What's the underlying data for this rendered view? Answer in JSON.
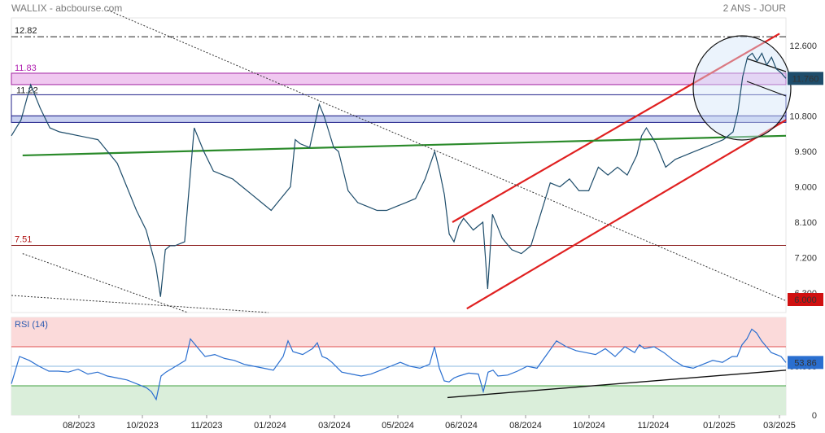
{
  "header": {
    "left": "WALLIX - abcbourse.com",
    "right": "2 ANS - JOUR"
  },
  "colors": {
    "price_line": "#1e4d6b",
    "channel": "#e02020",
    "green_trend": "#2a8a2a",
    "purple_zone": "#f0c8f0",
    "blue_zone": "#c8d0f0",
    "resistance": "#8b1a1a",
    "rsi_line": "#2a6fd0",
    "last_badge": "#1e4d6b",
    "low_badge": "#d01010",
    "rsi_over": "#fbdada",
    "rsi_under": "#daeeda"
  },
  "chart_data": [
    {
      "type": "line",
      "title": "WALLIX",
      "x_labels": [
        "08/2023",
        "10/2023",
        "11/2023",
        "01/2024",
        "03/2024",
        "05/2024",
        "06/2024",
        "08/2024",
        "10/2024",
        "11/2024",
        "01/2025",
        "03/2025"
      ],
      "y_ticks": [
        12.6,
        10.8,
        9.9,
        9.0,
        8.1,
        7.2,
        6.3
      ],
      "y_tick_labels": [
        "12.600",
        "10.800",
        "9.900",
        "9.000",
        "8.100",
        "7.200",
        "6.300"
      ],
      "ylim": [
        5.8,
        13.3
      ],
      "levels": [
        {
          "label": "12.82",
          "value": 12.82,
          "style": "dashdot"
        },
        {
          "label": "11.83",
          "value": 11.83,
          "style": "zone"
        },
        {
          "label": "11.22",
          "value": 11.22,
          "style": "box"
        },
        {
          "label": "7.51",
          "value": 7.51,
          "style": "solid"
        }
      ],
      "last_value": "11.760",
      "low_value": "6.000",
      "series": [
        {
          "x": [
            0,
            12,
            24,
            36,
            48,
            60,
            72,
            84,
            96,
            108,
            120,
            132,
            144,
            156,
            168,
            180,
            186,
            192,
            198,
            204,
            216,
            228,
            234,
            240,
            252,
            264,
            276,
            288,
            300,
            312,
            324,
            336,
            348,
            354,
            360,
            372,
            384,
            390,
            396,
            402,
            408,
            420,
            432,
            444,
            456,
            468,
            480,
            492,
            504,
            516,
            528,
            534,
            540,
            546,
            552,
            558,
            564,
            576,
            588,
            594,
            600,
            606,
            612,
            624,
            636,
            648,
            660,
            672,
            684,
            696,
            708,
            720,
            732,
            744,
            756,
            768,
            780,
            786,
            792,
            804,
            816,
            828,
            840,
            852,
            864,
            876,
            888,
            900,
            906,
            912,
            918,
            924,
            930,
            936,
            942,
            948,
            954,
            960,
            966
          ],
          "y": [
            10.3,
            10.7,
            11.6,
            11.0,
            10.5,
            10.4,
            10.35,
            10.3,
            10.25,
            10.2,
            9.9,
            9.6,
            9.0,
            8.4,
            7.9,
            7.0,
            6.2,
            7.4,
            7.5,
            7.5,
            7.6,
            10.5,
            10.2,
            9.9,
            9.4,
            9.3,
            9.2,
            9.0,
            8.8,
            8.6,
            8.4,
            8.7,
            9.0,
            10.2,
            10.1,
            10.0,
            11.1,
            10.8,
            10.4,
            10.0,
            9.9,
            8.9,
            8.6,
            8.5,
            8.4,
            8.4,
            8.5,
            8.6,
            8.7,
            9.2,
            9.9,
            9.4,
            8.8,
            7.8,
            7.6,
            8.0,
            8.2,
            7.9,
            8.1,
            6.4,
            8.3,
            8.0,
            7.7,
            7.4,
            7.3,
            7.5,
            8.3,
            9.1,
            9.0,
            9.2,
            8.9,
            8.9,
            9.5,
            9.3,
            9.5,
            9.3,
            9.8,
            10.3,
            10.5,
            10.1,
            9.5,
            9.7,
            9.8,
            9.9,
            10.0,
            10.1,
            10.2,
            10.4,
            10.9,
            11.8,
            12.3,
            12.4,
            12.2,
            12.4,
            12.1,
            12.3,
            12.0,
            11.9,
            11.76
          ]
        }
      ],
      "trendlines": [
        {
          "name": "channel-upper",
          "x": [
            550,
            958
          ],
          "y": [
            8.1,
            12.9
          ]
        },
        {
          "name": "channel-lower",
          "x": [
            568,
            966
          ],
          "y": [
            5.9,
            10.7
          ]
        },
        {
          "name": "green-trend",
          "x": [
            14,
            966
          ],
          "y": [
            9.8,
            10.3
          ]
        },
        {
          "name": "dotted-down-1",
          "x": [
            120,
            966
          ],
          "y": [
            13.5,
            6.1
          ]
        },
        {
          "name": "dotted-down-2",
          "x": [
            14,
            220
          ],
          "y": [
            7.3,
            5.8
          ]
        }
      ]
    },
    {
      "type": "line",
      "title": "RSI (14)",
      "ylim": [
        0,
        100
      ],
      "y_ticks": [
        50,
        0
      ],
      "y_tick_labels": [
        "50.000",
        "0"
      ],
      "zones": {
        "overbought": 70,
        "oversold": 30
      },
      "last_value": "53.86",
      "series": [
        {
          "x": [
            14,
            24,
            36,
            48,
            60,
            72,
            84,
            96,
            108,
            120,
            132,
            144,
            156,
            168,
            180,
            186,
            192,
            198,
            204,
            216,
            228,
            234,
            240,
            252,
            264,
            276,
            288,
            300,
            312,
            324,
            336,
            348,
            354,
            360,
            372,
            384,
            390,
            396,
            402,
            408,
            420,
            432,
            444,
            456,
            468,
            480,
            492,
            504,
            516,
            528,
            534,
            540,
            546,
            552,
            558,
            564,
            576,
            588,
            594,
            600,
            606,
            612,
            624,
            636,
            648,
            660,
            672,
            684,
            696,
            708,
            720,
            732,
            744,
            756,
            768,
            780,
            786,
            792,
            804,
            816,
            828,
            840,
            852,
            864,
            876,
            888,
            900,
            906,
            912,
            918,
            924,
            930,
            936,
            942,
            948,
            954,
            960,
            966
          ],
          "y": [
            32,
            60,
            56,
            50,
            45,
            45,
            44,
            47,
            42,
            44,
            40,
            38,
            36,
            32,
            28,
            24,
            16,
            40,
            44,
            50,
            56,
            78,
            72,
            60,
            62,
            58,
            56,
            52,
            50,
            48,
            46,
            60,
            76,
            65,
            62,
            68,
            74,
            60,
            58,
            54,
            44,
            42,
            40,
            42,
            46,
            50,
            54,
            50,
            48,
            52,
            70,
            48,
            35,
            34,
            38,
            40,
            43,
            42,
            24,
            44,
            46,
            40,
            41,
            45,
            50,
            48,
            62,
            76,
            70,
            66,
            64,
            62,
            68,
            60,
            70,
            64,
            72,
            68,
            70,
            64,
            56,
            50,
            48,
            52,
            56,
            54,
            60,
            60,
            72,
            78,
            88,
            84,
            76,
            70,
            64,
            62,
            60,
            53.86
          ]
        }
      ],
      "trendlines": [
        {
          "name": "rsi-support",
          "x": [
            550,
            966
          ],
          "y": [
            18,
            46
          ]
        }
      ]
    }
  ],
  "x_axis": {
    "labels": [
      "08/2023",
      "10/2023",
      "11/2023",
      "01/2024",
      "03/2024",
      "05/2024",
      "06/2024",
      "08/2024",
      "10/2024",
      "11/2024",
      "01/2025",
      "03/2025"
    ]
  }
}
